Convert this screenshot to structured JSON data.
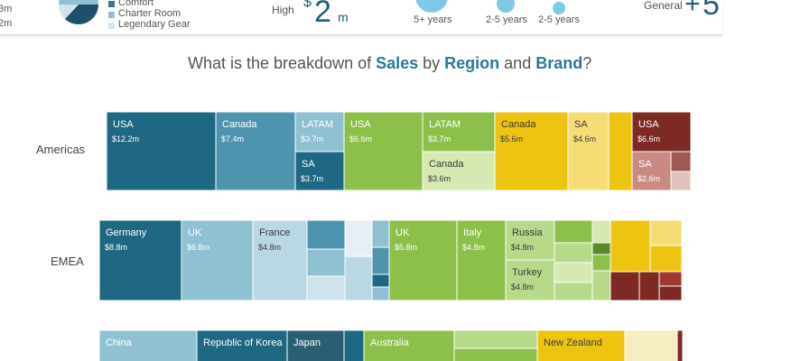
{
  "header": {
    "left_values": [
      "3m",
      "2m"
    ],
    "legend": [
      {
        "label": "Comfort",
        "color": "#2e7891"
      },
      {
        "label": "Charter Room",
        "color": "#8fc1d3"
      },
      {
        "label": "Legendary Gear",
        "color": "#cfe3ec"
      }
    ],
    "high_label": "High",
    "high_currency": "$",
    "high_value": "2",
    "high_unit": "m",
    "tenure": [
      {
        "label": "5+ years",
        "color": "#7ec8e8"
      },
      {
        "label": "2-5 years",
        "color": "#7ec8e8"
      },
      {
        "label": "2-5 years",
        "color": "#7ec8e8"
      }
    ],
    "general_label": "General",
    "general_value": "5"
  },
  "title": {
    "prefix": "What is the breakdown of ",
    "metric": "Sales",
    "by": " by ",
    "dim1": "Region",
    "and": " and ",
    "dim2": "Brand",
    "suffix": "?"
  },
  "chart_data": {
    "type": "treemap",
    "regions": [
      {
        "name": "Americas",
        "cells": [
          {
            "label": "USA",
            "value": "$12.2m",
            "color": "#1e6883"
          },
          {
            "label": "Canada",
            "value": "$7.4m",
            "color": "#4f94ae"
          },
          {
            "label": "LATAM",
            "value": "$3.7m",
            "color": "#8fc1d3"
          },
          {
            "label": "SA",
            "value": "$3.7m",
            "color": "#1e6883"
          },
          {
            "label": "USA",
            "value": "$6.6m",
            "color": "#8dc04a"
          },
          {
            "label": "LATAM",
            "value": "$3.7m",
            "color": "#8dc04a"
          },
          {
            "label": "Canada",
            "value": "$3.6m",
            "color": "#d5e9b0"
          },
          {
            "label": "Canada",
            "value": "$5.6m",
            "color": "#eec413"
          },
          {
            "label": "SA",
            "value": "$4.6m",
            "color": "#f6dc74"
          },
          {
            "label": "",
            "value": "",
            "color": "#eec413"
          },
          {
            "label": "USA",
            "value": "$6.6m",
            "color": "#7d2a24"
          },
          {
            "label": "SA",
            "value": "$2.6m",
            "color": "#c98a82"
          }
        ]
      },
      {
        "name": "EMEA",
        "cells": [
          {
            "label": "Germany",
            "value": "$8.8m",
            "color": "#1e6883"
          },
          {
            "label": "UK",
            "value": "$6.8m",
            "color": "#8fc1d3"
          },
          {
            "label": "France",
            "value": "$4.8m",
            "color": "#b9d8e4"
          },
          {
            "label": "UK",
            "value": "$5.8m",
            "color": "#8dc04a"
          },
          {
            "label": "Italy",
            "value": "$4.8m",
            "color": "#8dc04a"
          },
          {
            "label": "Russia",
            "value": "$4.8m",
            "color": "#b7d98a"
          },
          {
            "label": "Turkey",
            "value": "$4.8m",
            "color": "#b7d98a"
          }
        ]
      },
      {
        "name": "",
        "cells": [
          {
            "label": "China",
            "value": "",
            "color": "#8fc1d3"
          },
          {
            "label": "Republic of Korea",
            "value": "",
            "color": "#1e6883"
          },
          {
            "label": "Japan",
            "value": "",
            "color": "#2a5f72"
          },
          {
            "label": "Australia",
            "value": "",
            "color": "#8dc04a"
          },
          {
            "label": "New Zealand",
            "value": "",
            "color": "#eec413"
          }
        ]
      }
    ],
    "xlabel": "",
    "ylabel": ""
  }
}
